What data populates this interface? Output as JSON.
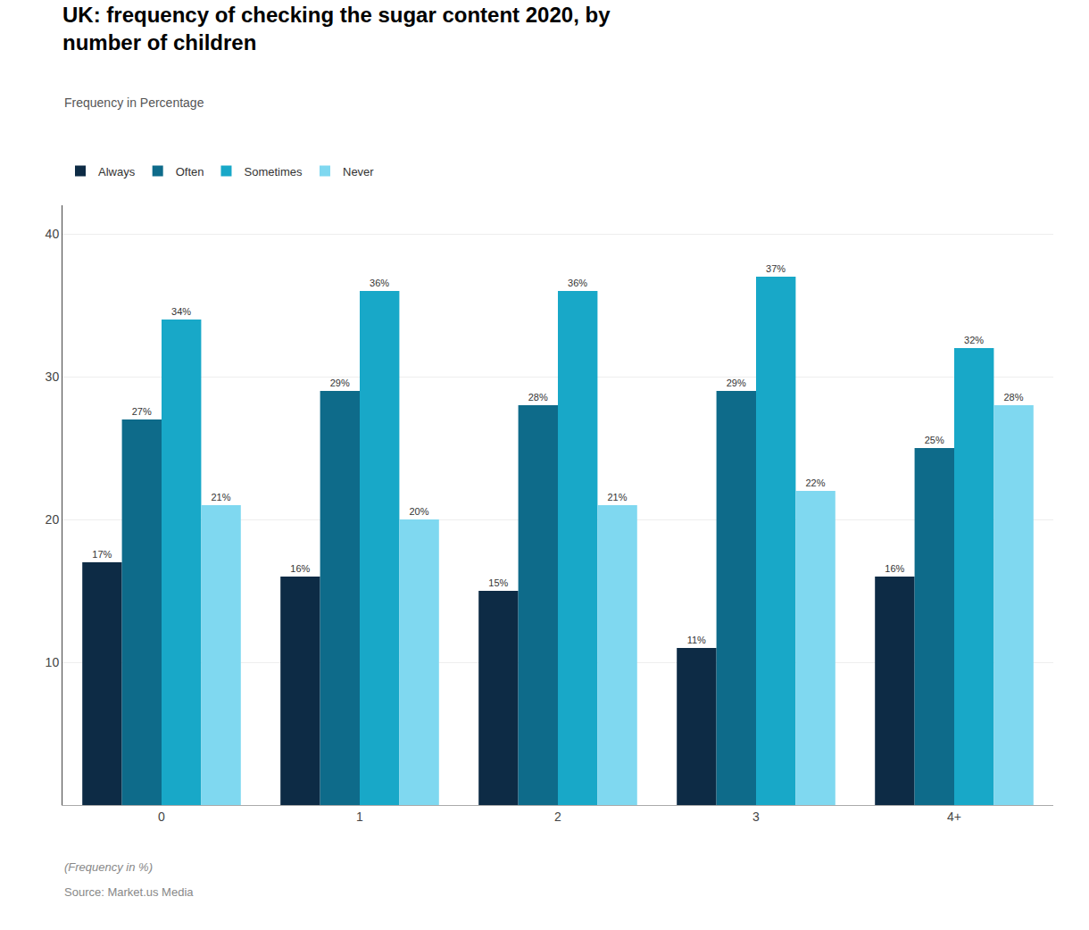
{
  "chart_data": {
    "type": "bar",
    "title": "UK: frequency of checking the sugar content 2020, by\nnumber of children",
    "subtitle": "Frequency in Percentage",
    "annotations": [
      "(Frequency in %)",
      "Source: Market.us Media"
    ],
    "categories": [
      "0",
      "1",
      "2",
      "3",
      "4+"
    ],
    "series": [
      {
        "name": "Always",
        "color": "#0d2b45",
        "values": [
          17,
          16,
          15,
          11,
          16
        ],
        "value_labels": [
          "17%",
          "16%",
          "15%",
          "11%",
          "16%"
        ]
      },
      {
        "name": "Often",
        "color": "#0e6b8a",
        "values": [
          27,
          29,
          28,
          29,
          25
        ],
        "value_labels": [
          "27%",
          "29%",
          "28%",
          "29%",
          "25%"
        ]
      },
      {
        "name": "Sometimes",
        "color": "#18a8c8",
        "values": [
          34,
          36,
          36,
          37,
          32
        ],
        "value_labels": [
          "34%",
          "36%",
          "36%",
          "37%",
          "32%"
        ]
      },
      {
        "name": "Never",
        "color": "#7fd8f0",
        "values": [
          21,
          20,
          21,
          22,
          28
        ],
        "value_labels": [
          "21%",
          "20%",
          "21%",
          "22%",
          "28%"
        ]
      }
    ],
    "ylim": [
      0,
      42
    ],
    "yticks": [
      10,
      20,
      30,
      40
    ],
    "grid": true,
    "legend": "upper left",
    "data_labels": true
  }
}
